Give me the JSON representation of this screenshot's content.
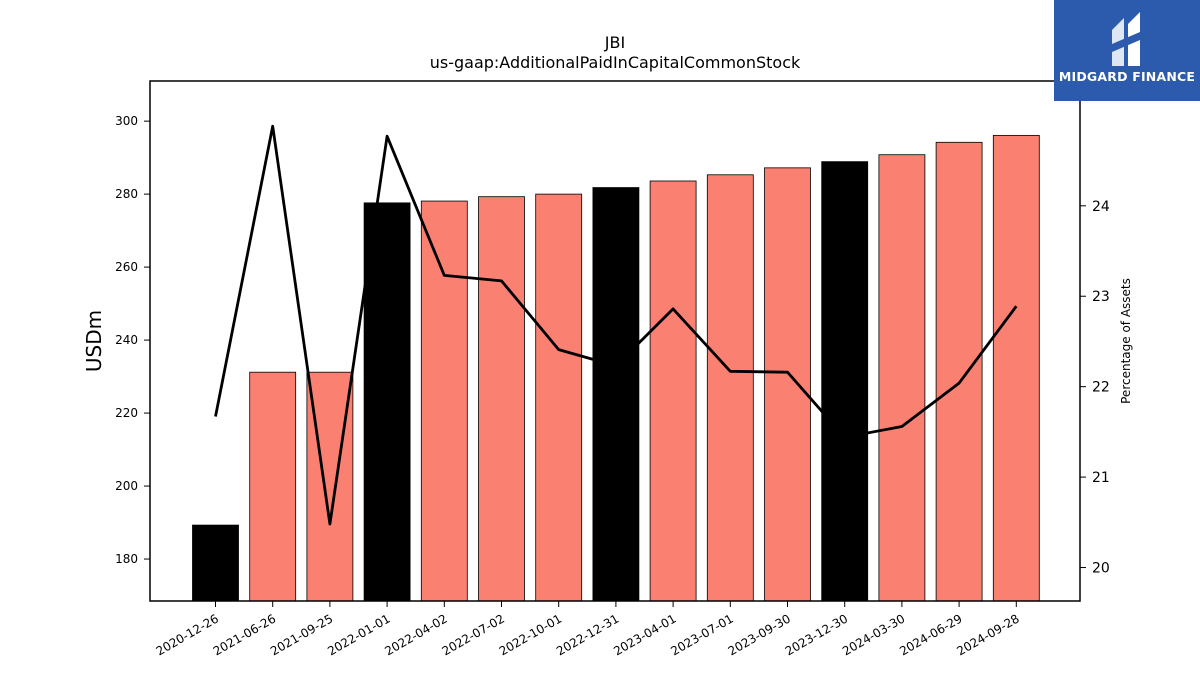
{
  "chart_data": {
    "type": "bar",
    "title": "JBI",
    "subtitle": "us-gaap:AdditionalPaidInCapitalCommonStock",
    "ylabel": "USDm",
    "ylabel_right": "Percentage of Assets",
    "categories": [
      "2020-12-26",
      "2021-06-26",
      "2021-09-25",
      "2022-01-01",
      "2022-04-02",
      "2022-07-02",
      "2022-10-01",
      "2022-12-31",
      "2023-04-01",
      "2023-07-01",
      "2023-09-30",
      "2023-12-30",
      "2024-03-30",
      "2024-06-29",
      "2024-09-28"
    ],
    "series": [
      {
        "type": "bar",
        "values": [
          189.3,
          231.2,
          231.2,
          277.6,
          278.1,
          279.3,
          280.0,
          281.8,
          283.6,
          285.3,
          287.2,
          288.9,
          290.8,
          294.2,
          296.1
        ],
        "highlight": [
          true,
          false,
          false,
          true,
          false,
          false,
          false,
          true,
          false,
          false,
          false,
          true,
          false,
          false,
          false
        ],
        "colors": {
          "highlight": "#000000",
          "normal": "#fa8072"
        }
      },
      {
        "type": "line",
        "axis": "right",
        "values": [
          21.67,
          24.88,
          20.48,
          24.77,
          23.23,
          23.17,
          22.41,
          22.23,
          22.86,
          22.17,
          22.16,
          21.44,
          21.56,
          22.04,
          22.89
        ],
        "color": "#000000"
      }
    ],
    "ylim": [
      168.5,
      311
    ],
    "yticks": [
      180,
      200,
      220,
      240,
      260,
      280,
      300
    ],
    "ylim_right": [
      19.63,
      25.38
    ],
    "yticks_right": [
      20,
      21,
      22,
      23,
      24
    ],
    "grid": false
  },
  "logo": {
    "text": "MIDGARD FINANCE",
    "icon": "midgard-logo-icon",
    "background": "#2c5aac"
  }
}
